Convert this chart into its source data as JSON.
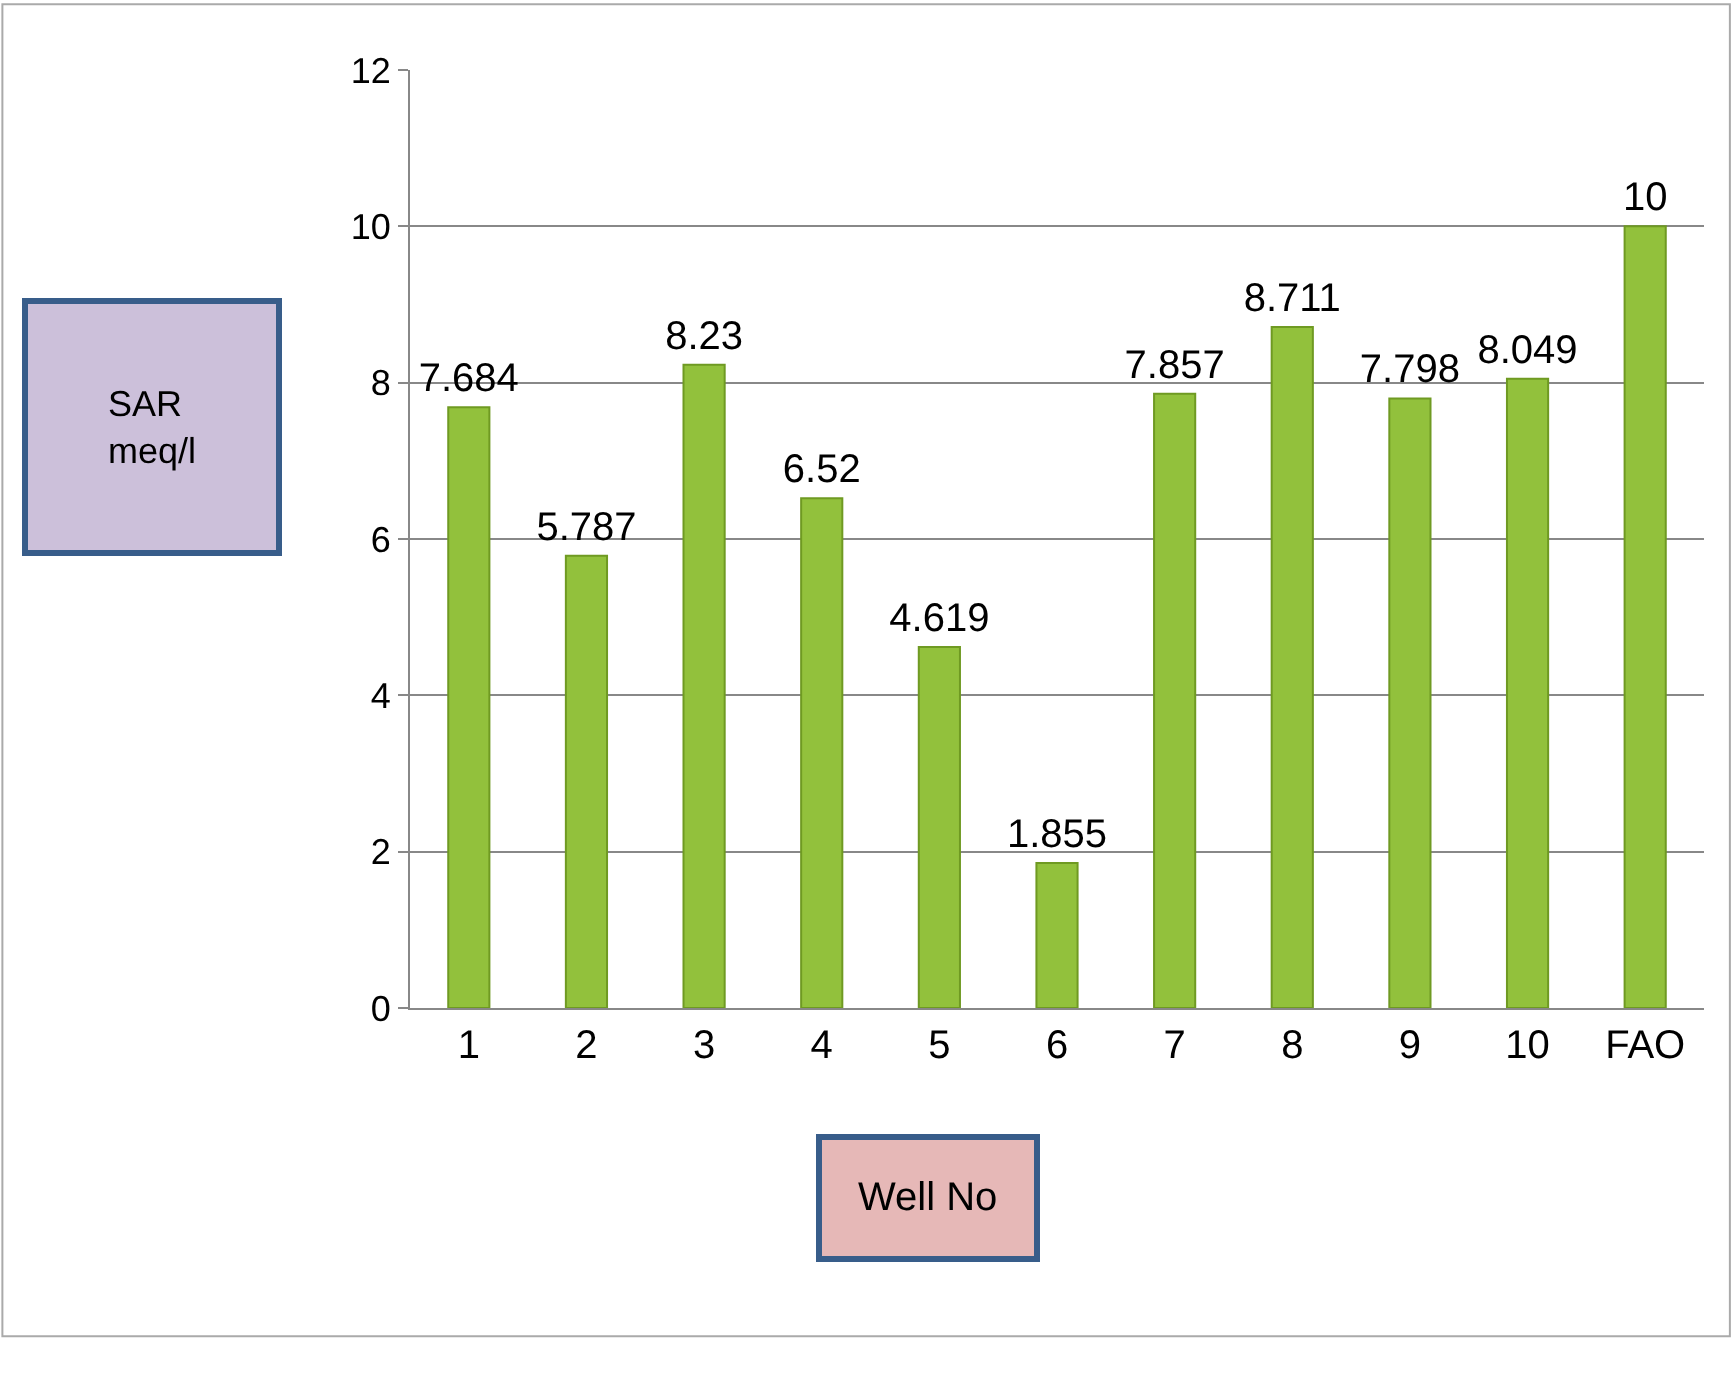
{
  "chart_data": {
    "type": "bar",
    "xlabel": "Well No",
    "ylabel": "SAR\nmeq/l",
    "categories": [
      "1",
      "2",
      "3",
      "4",
      "5",
      "6",
      "7",
      "8",
      "9",
      "10",
      "FAO"
    ],
    "values": [
      7.684,
      5.787,
      8.23,
      6.52,
      4.619,
      1.855,
      7.857,
      8.711,
      7.798,
      8.049,
      10
    ],
    "color": "#92c13c",
    "data_labels": true,
    "grid": "y",
    "ylim": [
      0,
      12
    ],
    "yticks": [
      0,
      2,
      4,
      6,
      8,
      10,
      12
    ]
  }
}
